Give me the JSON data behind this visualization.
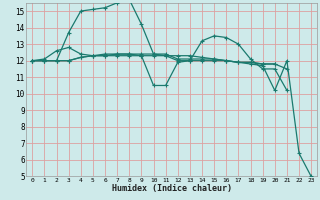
{
  "xlabel": "Humidex (Indice chaleur)",
  "bg_color": "#ceeaea",
  "grid_color": "#dda0a0",
  "line_color": "#1a7a6e",
  "xlim": [
    -0.5,
    23.5
  ],
  "ylim": [
    5,
    15.5
  ],
  "xticks": [
    0,
    1,
    2,
    3,
    4,
    5,
    6,
    7,
    8,
    9,
    10,
    11,
    12,
    13,
    14,
    15,
    16,
    17,
    18,
    19,
    20,
    21,
    22,
    23
  ],
  "yticks": [
    5,
    6,
    7,
    8,
    9,
    10,
    11,
    12,
    13,
    14,
    15
  ],
  "series": [
    {
      "x": [
        0,
        1,
        2,
        3,
        4,
        5,
        6,
        7,
        8,
        9,
        10,
        11,
        12,
        13,
        14,
        15,
        16,
        17,
        18,
        19,
        20,
        21,
        22,
        23
      ],
      "y": [
        12,
        12,
        12,
        13.7,
        15,
        15.1,
        15.2,
        15.5,
        15.7,
        14.2,
        12.4,
        12.3,
        12.3,
        12.3,
        12.2,
        12.1,
        12.0,
        11.9,
        11.8,
        11.7,
        10.2,
        12.0,
        6.4,
        5.0
      ]
    },
    {
      "x": [
        0,
        1,
        2,
        3,
        4,
        5,
        6,
        7,
        8,
        9,
        10,
        11,
        12,
        13,
        14,
        15,
        16,
        17,
        18,
        19,
        20,
        21
      ],
      "y": [
        12,
        12.1,
        12.6,
        12.8,
        12.4,
        12.3,
        12.3,
        12.4,
        12.4,
        12.3,
        10.5,
        10.5,
        11.9,
        12.0,
        13.2,
        13.5,
        13.4,
        13.0,
        12.1,
        11.5,
        11.5,
        10.2
      ]
    },
    {
      "x": [
        0,
        1,
        2,
        3,
        4,
        5,
        6,
        7,
        8,
        9,
        10,
        11,
        12,
        13,
        14,
        15,
        16,
        17,
        18,
        19,
        20,
        21
      ],
      "y": [
        12,
        12,
        12,
        12,
        12.2,
        12.3,
        12.3,
        12.3,
        12.3,
        12.3,
        12.3,
        12.3,
        12.0,
        12.0,
        12.0,
        12.0,
        12.0,
        11.9,
        11.9,
        11.8,
        11.8,
        11.5
      ]
    },
    {
      "x": [
        0,
        1,
        2,
        3,
        4,
        5,
        6,
        7,
        8,
        9,
        10,
        11,
        12,
        13,
        14,
        15,
        16,
        17,
        18,
        19,
        20
      ],
      "y": [
        12,
        12,
        12,
        12,
        12.2,
        12.3,
        12.4,
        12.4,
        12.4,
        12.4,
        12.4,
        12.4,
        12.1,
        12.1,
        12.1,
        12.1,
        12.0,
        11.9,
        11.9,
        11.8,
        11.8
      ]
    }
  ]
}
